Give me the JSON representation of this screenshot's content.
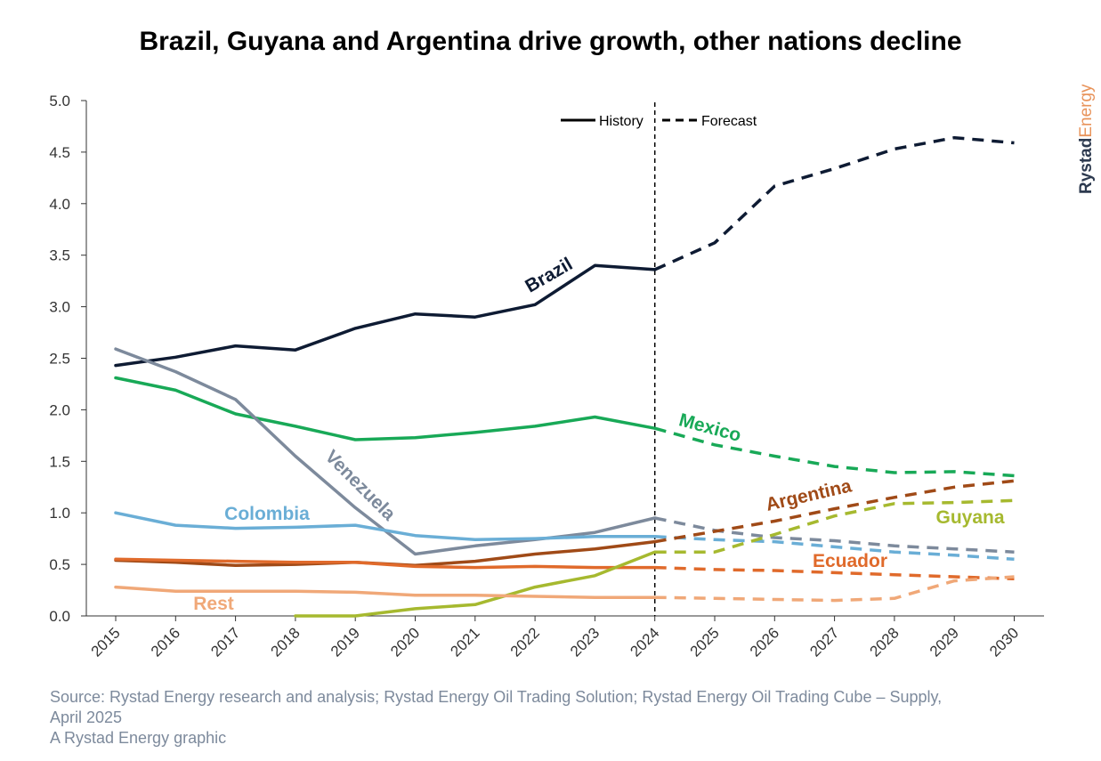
{
  "title": "Brazil, Guyana and Argentina drive growth, other nations decline",
  "source": {
    "line1": "Source: Rystad Energy research and analysis; Rystad Energy Oil Trading Solution; Rystad Energy Oil Trading Cube – Supply,",
    "line2": "April 2025",
    "line3": "A Rystad Energy graphic"
  },
  "brand": {
    "part1": "Rystad",
    "part2": "Energy",
    "color1": "#2d3a4f",
    "color2": "#e8935a"
  },
  "chart_data": {
    "type": "line",
    "x": [
      2015,
      2016,
      2017,
      2018,
      2019,
      2020,
      2021,
      2022,
      2023,
      2024,
      2025,
      2026,
      2027,
      2028,
      2029,
      2030
    ],
    "x_tick_labels": [
      "2015",
      "2016",
      "2017",
      "2018",
      "2019",
      "2020",
      "2021",
      "2022",
      "2023",
      "2024",
      "2025",
      "2026",
      "2027",
      "2028",
      "2029",
      "2030"
    ],
    "y_tick_labels": [
      "0.0",
      "0.5",
      "1.0",
      "1.5",
      "2.0",
      "2.5",
      "3.0",
      "3.5",
      "4.0",
      "4.5",
      "5.0"
    ],
    "ylim": [
      0,
      5
    ],
    "forecast_start": 2024,
    "grid": false,
    "legend": {
      "placement": "top-center",
      "history_label": "History",
      "forecast_label": "Forecast"
    },
    "series": [
      {
        "name": "Brazil",
        "color": "#0e1b33",
        "values": [
          2.43,
          2.51,
          2.62,
          2.58,
          2.79,
          2.93,
          2.9,
          3.02,
          3.4,
          3.36,
          3.62,
          4.17,
          4.34,
          4.53,
          4.64,
          4.59
        ]
      },
      {
        "name": "Mexico",
        "color": "#18a957",
        "values": [
          2.31,
          2.19,
          1.96,
          1.84,
          1.71,
          1.73,
          1.78,
          1.84,
          1.93,
          1.82,
          1.66,
          1.55,
          1.45,
          1.39,
          1.4,
          1.36
        ]
      },
      {
        "name": "Venezuela",
        "color": "#7d8a9c",
        "values": [
          2.59,
          2.37,
          2.1,
          1.55,
          1.05,
          0.6,
          0.68,
          0.74,
          0.81,
          0.95,
          0.83,
          0.76,
          0.73,
          0.68,
          0.65,
          0.62
        ]
      },
      {
        "name": "Colombia",
        "color": "#6aaed6",
        "values": [
          1.0,
          0.88,
          0.85,
          0.86,
          0.88,
          0.78,
          0.74,
          0.75,
          0.77,
          0.77,
          0.74,
          0.72,
          0.67,
          0.62,
          0.59,
          0.55
        ]
      },
      {
        "name": "Argentina",
        "color": "#a04a17",
        "values": [
          0.54,
          0.52,
          0.49,
          0.5,
          0.52,
          0.49,
          0.53,
          0.6,
          0.65,
          0.72,
          0.82,
          0.92,
          1.04,
          1.15,
          1.25,
          1.31
        ]
      },
      {
        "name": "Ecuador",
        "color": "#e06a2b",
        "values": [
          0.55,
          0.54,
          0.53,
          0.52,
          0.52,
          0.48,
          0.47,
          0.48,
          0.47,
          0.47,
          0.45,
          0.44,
          0.42,
          0.4,
          0.38,
          0.36
        ]
      },
      {
        "name": "Guyana",
        "color": "#a6b92f",
        "values": [
          null,
          null,
          null,
          0.0,
          0.0,
          0.07,
          0.11,
          0.28,
          0.39,
          0.62,
          0.62,
          0.79,
          0.97,
          1.09,
          1.1,
          1.12
        ]
      },
      {
        "name": "Rest",
        "color": "#f0a878",
        "values": [
          0.28,
          0.24,
          0.24,
          0.24,
          0.23,
          0.2,
          0.2,
          0.19,
          0.18,
          0.18,
          0.17,
          0.16,
          0.15,
          0.17,
          0.34,
          0.38
        ]
      }
    ],
    "labels": [
      {
        "series": "Brazil",
        "text": "Brazil"
      },
      {
        "series": "Mexico",
        "text": "Mexico"
      },
      {
        "series": "Venezuela",
        "text": "Venezuela"
      },
      {
        "series": "Colombia",
        "text": "Colombia"
      },
      {
        "series": "Argentina",
        "text": "Argentina"
      },
      {
        "series": "Ecuador",
        "text": "Ecuador"
      },
      {
        "series": "Guyana",
        "text": "Guyana"
      },
      {
        "series": "Rest",
        "text": "Rest"
      }
    ]
  }
}
